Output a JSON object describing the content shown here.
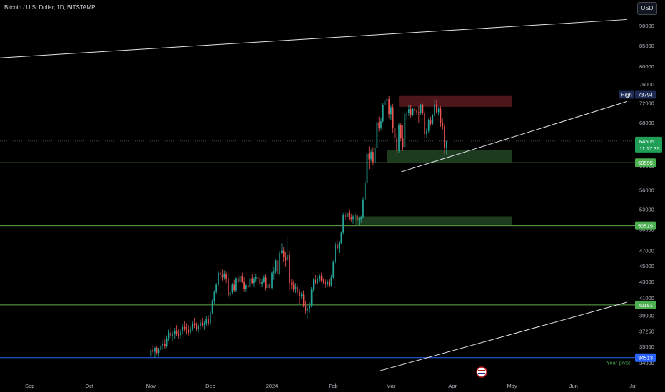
{
  "header": {
    "symbol_title": "Bitcoin / U.S. Dollar, 1D, BITSTAMP",
    "currency_button": "USD"
  },
  "chart_data": {
    "type": "candlestick",
    "price_axis": {
      "ticks": [
        90000,
        85000,
        80000,
        76000,
        72000,
        68000,
        64000,
        60000,
        56000,
        53000,
        50000,
        47000,
        45000,
        43000,
        41000,
        39000,
        37250,
        35650,
        34000
      ],
      "tick_labels": [
        "90000",
        "85000",
        "80000",
        "76000",
        "72000",
        "68000",
        "64000",
        "60000",
        "56000",
        "53000",
        "50000",
        "47000",
        "45000",
        "43000",
        "41000",
        "39000",
        "37250",
        "35650",
        "34000"
      ],
      "scale": "log",
      "range": [
        33000,
        95000
      ]
    },
    "time_axis": {
      "labels": [
        "Sep",
        "Oct",
        "Nov",
        "Dec",
        "2024",
        "Feb",
        "Mar",
        "Apr",
        "May",
        "Jun",
        "Jul"
      ],
      "label_dates": [
        "2023-09-01",
        "2023-10-01",
        "2023-11-01",
        "2023-12-01",
        "2024-01-01",
        "2024-02-01",
        "2024-03-01",
        "2024-04-01",
        "2024-05-01",
        "2024-06-01",
        "2024-07-01"
      ],
      "range": [
        "2023-08-17",
        "2024-07-02"
      ]
    },
    "candles_first_date": "2023-11-01",
    "candles": [
      [
        34600,
        35400,
        34100,
        35300
      ],
      [
        35300,
        35800,
        34900,
        35100
      ],
      [
        35100,
        35600,
        34500,
        35500
      ],
      [
        35500,
        35700,
        34800,
        35000
      ],
      [
        35000,
        35500,
        34600,
        35300
      ],
      [
        35300,
        36100,
        35100,
        35700
      ],
      [
        35700,
        36300,
        35300,
        35900
      ],
      [
        35900,
        36400,
        35400,
        35700
      ],
      [
        35700,
        36800,
        35500,
        36500
      ],
      [
        36500,
        37400,
        36200,
        37100
      ],
      [
        37100,
        37700,
        36500,
        36700
      ],
      [
        36700,
        37200,
        36200,
        36900
      ],
      [
        36900,
        37600,
        36400,
        37300
      ],
      [
        37300,
        37900,
        36700,
        37000
      ],
      [
        37000,
        37500,
        36400,
        36800
      ],
      [
        36800,
        37500,
        36400,
        37300
      ],
      [
        37300,
        38000,
        36900,
        37700
      ],
      [
        37700,
        38300,
        37200,
        37500
      ],
      [
        37500,
        38100,
        36900,
        37400
      ],
      [
        37400,
        37900,
        36800,
        37100
      ],
      [
        37100,
        37800,
        36900,
        37500
      ],
      [
        37500,
        38400,
        37300,
        38100
      ],
      [
        38100,
        38700,
        37600,
        37900
      ],
      [
        37900,
        38200,
        37200,
        37500
      ],
      [
        37500,
        38000,
        37100,
        37800
      ],
      [
        37800,
        38500,
        37400,
        38200
      ],
      [
        38200,
        38700,
        37700,
        37900
      ],
      [
        37900,
        38400,
        37400,
        38100
      ],
      [
        38100,
        38900,
        37800,
        38600
      ],
      [
        38600,
        39000,
        37800,
        38100
      ],
      [
        38100,
        39500,
        37900,
        39300
      ],
      [
        39300,
        40800,
        39100,
        40600
      ],
      [
        40600,
        41900,
        40300,
        41800
      ],
      [
        41800,
        42800,
        41500,
        42600
      ],
      [
        42600,
        44300,
        42300,
        44100
      ],
      [
        44100,
        44700,
        43300,
        43800
      ],
      [
        43800,
        44500,
        43100,
        43500
      ],
      [
        43500,
        44400,
        43200,
        43900
      ],
      [
        43900,
        44300,
        42800,
        43300
      ],
      [
        43300,
        43900,
        41000,
        41300
      ],
      [
        41300,
        42100,
        40700,
        41700
      ],
      [
        41700,
        42800,
        41500,
        42600
      ],
      [
        42600,
        43200,
        41700,
        41900
      ],
      [
        41900,
        43600,
        41700,
        43400
      ],
      [
        43400,
        43900,
        42600,
        42900
      ],
      [
        42900,
        44000,
        42700,
        43700
      ],
      [
        43700,
        44100,
        42800,
        43000
      ],
      [
        43000,
        43500,
        41800,
        42100
      ],
      [
        42100,
        42700,
        41700,
        42500
      ],
      [
        42500,
        43100,
        41900,
        42300
      ],
      [
        42300,
        43600,
        42100,
        43400
      ],
      [
        43400,
        43900,
        42600,
        42800
      ],
      [
        42800,
        43600,
        42400,
        43300
      ],
      [
        43300,
        44000,
        42900,
        43600
      ],
      [
        43600,
        44200,
        43100,
        43400
      ],
      [
        43400,
        43900,
        42600,
        42700
      ],
      [
        42700,
        43300,
        42300,
        43000
      ],
      [
        43000,
        43800,
        42800,
        43500
      ],
      [
        43500,
        43900,
        41900,
        42200
      ],
      [
        42200,
        42900,
        41600,
        42700
      ],
      [
        42700,
        43100,
        41900,
        42200
      ],
      [
        42200,
        44300,
        42000,
        44100
      ],
      [
        44100,
        44900,
        43200,
        44300
      ],
      [
        44300,
        45800,
        44000,
        45700
      ],
      [
        45700,
        45900,
        43600,
        43900
      ],
      [
        43900,
        47000,
        43700,
        46700
      ],
      [
        46700,
        48000,
        46500,
        47000
      ],
      [
        47000,
        47500,
        45500,
        46100
      ],
      [
        46100,
        46800,
        44900,
        45700
      ],
      [
        45700,
        48900,
        45500,
        46400
      ],
      [
        46400,
        47000,
        41900,
        42800
      ],
      [
        42800,
        43300,
        42000,
        42600
      ],
      [
        42600,
        43100,
        41700,
        42000
      ],
      [
        42000,
        42800,
        41600,
        42400
      ],
      [
        42400,
        42700,
        41300,
        41700
      ],
      [
        41700,
        42100,
        40300,
        41200
      ],
      [
        41200,
        41800,
        40900,
        41400
      ],
      [
        41400,
        41900,
        39900,
        40000
      ],
      [
        40000,
        40700,
        39200,
        39500
      ],
      [
        39500,
        40100,
        38600,
        39800
      ],
      [
        39800,
        40500,
        39300,
        40100
      ],
      [
        40100,
        42300,
        39900,
        42000
      ],
      [
        42000,
        43400,
        41800,
        43200
      ],
      [
        43200,
        43800,
        42600,
        42800
      ],
      [
        42800,
        43700,
        42600,
        43300
      ],
      [
        43300,
        43900,
        42900,
        43700
      ],
      [
        43700,
        44100,
        42900,
        43100
      ],
      [
        43100,
        43400,
        42700,
        42900
      ],
      [
        42900,
        43300,
        42200,
        42600
      ],
      [
        42600,
        43200,
        42400,
        43000
      ],
      [
        43000,
        43300,
        42300,
        42500
      ],
      [
        42500,
        43800,
        42400,
        43500
      ],
      [
        43500,
        45700,
        43300,
        45500
      ],
      [
        45500,
        48200,
        45300,
        47800
      ],
      [
        47800,
        48500,
        47000,
        47300
      ],
      [
        47300,
        48300,
        46700,
        48000
      ],
      [
        48000,
        49700,
        47900,
        49500
      ],
      [
        49500,
        52400,
        49200,
        52100
      ],
      [
        52100,
        52600,
        51400,
        51800
      ],
      [
        51800,
        52700,
        51400,
        52400
      ],
      [
        52400,
        52800,
        51300,
        51700
      ],
      [
        51700,
        52300,
        51000,
        51500
      ],
      [
        51500,
        52200,
        50800,
        51900
      ],
      [
        51900,
        52600,
        51300,
        52100
      ],
      [
        52100,
        52500,
        50600,
        51300
      ],
      [
        51300,
        51800,
        50600,
        51500
      ],
      [
        51500,
        52000,
        50900,
        51700
      ],
      [
        51700,
        54800,
        51600,
        54500
      ],
      [
        54500,
        57500,
        54300,
        57100
      ],
      [
        57100,
        62500,
        57000,
        62200
      ],
      [
        62200,
        63500,
        59500,
        61200
      ],
      [
        61200,
        63000,
        60800,
        62500
      ],
      [
        62500,
        63400,
        60100,
        60700
      ],
      [
        60700,
        63500,
        60400,
        63200
      ],
      [
        63200,
        68300,
        63000,
        68100
      ],
      [
        68100,
        69200,
        66300,
        66900
      ],
      [
        66900,
        69000,
        66500,
        68300
      ],
      [
        68300,
        72000,
        68000,
        71500
      ],
      [
        71500,
        73000,
        70900,
        72400
      ],
      [
        72400,
        73800,
        71600,
        72800
      ],
      [
        72800,
        73500,
        68800,
        69700
      ],
      [
        69700,
        71500,
        68500,
        71100
      ],
      [
        71100,
        71800,
        66000,
        66900
      ],
      [
        66900,
        68200,
        64500,
        65100
      ],
      [
        65100,
        66000,
        61900,
        62700
      ],
      [
        62700,
        68000,
        62400,
        67500
      ],
      [
        67500,
        68000,
        64500,
        65000
      ],
      [
        65000,
        67500,
        62700,
        63400
      ],
      [
        63400,
        70000,
        63200,
        69800
      ],
      [
        69800,
        70300,
        68500,
        70000
      ],
      [
        70000,
        71600,
        69300,
        70700
      ],
      [
        70700,
        71500,
        68900,
        69600
      ],
      [
        69600,
        71000,
        69300,
        70800
      ],
      [
        70800,
        71200,
        69600,
        70300
      ],
      [
        70300,
        70800,
        69500,
        70100
      ],
      [
        70100,
        71300,
        68000,
        69900
      ],
      [
        69900,
        71800,
        69600,
        71500
      ],
      [
        71500,
        71800,
        69600,
        69900
      ],
      [
        69900,
        70300,
        65000,
        65800
      ],
      [
        65800,
        66900,
        65100,
        66400
      ],
      [
        66400,
        68800,
        66100,
        68500
      ],
      [
        68500,
        69200,
        67400,
        67800
      ],
      [
        67800,
        69700,
        67500,
        69500
      ],
      [
        69500,
        72800,
        69200,
        71700
      ],
      [
        71700,
        72700,
        69800,
        70100
      ],
      [
        70100,
        71200,
        69400,
        70800
      ],
      [
        70800,
        71300,
        67200,
        67900
      ],
      [
        67900,
        68800,
        66600,
        67300
      ],
      [
        67300,
        67800,
        62100,
        63200
      ],
      [
        63200,
        64500,
        62000,
        64500
      ]
    ],
    "zones": [
      {
        "name": "resistance",
        "color": "#5a1a20",
        "start": "2024-03-05",
        "end": "2024-05-01",
        "low": 71200,
        "high": 73600
      },
      {
        "name": "upper-support",
        "color": "#224724",
        "start": "2024-02-28",
        "end": "2024-05-01",
        "low": 60700,
        "high": 62900
      },
      {
        "name": "lower-support",
        "color": "#224724",
        "start": "2024-02-12",
        "end": "2024-05-01",
        "low": 50700,
        "high": 51900
      }
    ],
    "horizontal_lines": [
      {
        "name": "level-60595",
        "color": "#5faa4d",
        "value": 60595,
        "label": "60595"
      },
      {
        "name": "level-50519",
        "color": "#5faa4d",
        "value": 50519,
        "label": "50519"
      },
      {
        "name": "level-40181",
        "color": "#5faa4d",
        "value": 40181,
        "label": "40181"
      },
      {
        "name": "level-34513",
        "color": "#2962ff",
        "value": 34513,
        "label": "34513"
      }
    ],
    "trendlines": [
      {
        "name": "upper-trendline",
        "from": [
          "2023-08-17",
          82000
        ],
        "to": [
          "2024-06-28",
          91600
        ]
      },
      {
        "name": "mid-trendline",
        "from": [
          "2024-03-06",
          59000
        ],
        "to": [
          "2024-06-28",
          72300
        ]
      },
      {
        "name": "lower-trendline",
        "from": [
          "2024-02-24",
          33200
        ],
        "to": [
          "2024-06-28",
          40500
        ]
      }
    ],
    "last_price": {
      "value": 64505,
      "label": "64505",
      "countdown": "11:17:35",
      "color": "#1e9e56"
    },
    "high_marker": {
      "tag": "High",
      "value": 73794,
      "label": "73794"
    },
    "year_pivot_label": "Year pivot",
    "colors": {
      "up": "#26a69a",
      "down": "#ef5350",
      "background": "#000000",
      "axis_text": "#b2b5be"
    }
  }
}
